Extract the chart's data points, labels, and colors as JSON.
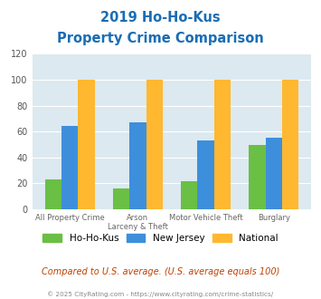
{
  "title_line1": "2019 Ho-Ho-Kus",
  "title_line2": "Property Crime Comparison",
  "cat_labels_line1": [
    "All Property Crime",
    "Arson",
    "Motor Vehicle Theft",
    "Burglary"
  ],
  "cat_labels_line2": [
    "",
    "Larceny & Theft",
    "",
    ""
  ],
  "hohokus": [
    23,
    16,
    22,
    50
  ],
  "newjersey": [
    64,
    67,
    53,
    55
  ],
  "national": [
    100,
    100,
    100,
    100
  ],
  "color_hohokus": "#6abf45",
  "color_nj": "#3d8fdc",
  "color_national": "#ffb830",
  "ylim": [
    0,
    120
  ],
  "yticks": [
    0,
    20,
    40,
    60,
    80,
    100,
    120
  ],
  "background_color": "#dce9f0",
  "legend_labels": [
    "Ho-Ho-Kus",
    "New Jersey",
    "National"
  ],
  "footnote": "Compared to U.S. average. (U.S. average equals 100)",
  "copyright": "© 2025 CityRating.com - https://www.cityrating.com/crime-statistics/",
  "title_color": "#1a6db5",
  "footnote_color": "#c04000",
  "copyright_color": "#888888"
}
